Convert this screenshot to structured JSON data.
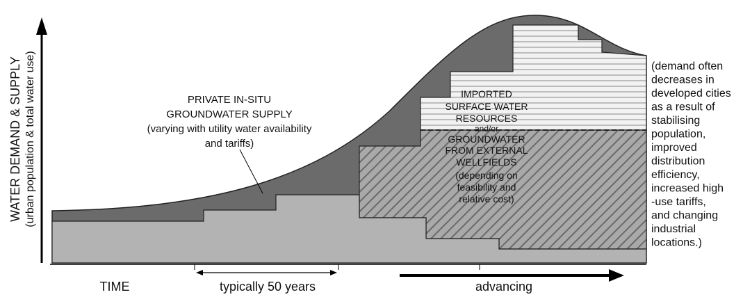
{
  "y_axis_label": [
    "WATER DEMAND & SUPPLY",
    "(urban population & total water use)"
  ],
  "private_supply_label": [
    "PRIVATE IN-SITU",
    "GROUNDWATER SUPPLY",
    "(varying with utility water availability",
    "and tariffs)"
  ],
  "external_label": [
    "IMPORTED",
    "SURFACE WATER",
    "RESOURCES",
    "and/or",
    "GROUNDWATER",
    "FROM EXTERNAL",
    "WELLFIELDS",
    "(depending on",
    "feasibility and",
    "relative cost)"
  ],
  "demand_note": [
    "(demand often",
    "decreases in",
    "developed cities",
    "as a result of",
    "stabilising",
    "population,",
    "improved",
    "distribution",
    "efficiency,",
    "increased high",
    "-use tariffs,",
    "and changing",
    "industrial",
    "locations.)"
  ],
  "x_axis": {
    "time": "TIME",
    "span": "typically 50 years",
    "direction": "advancing"
  }
}
